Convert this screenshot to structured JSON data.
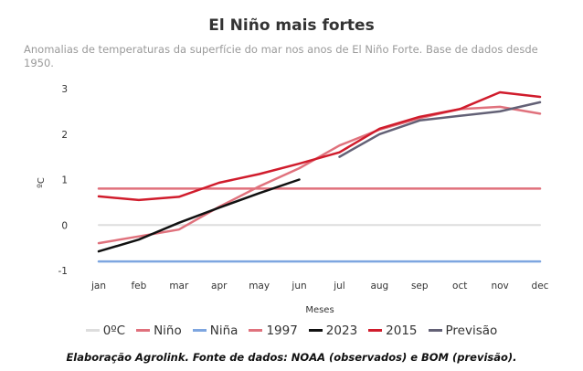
{
  "chart_data": {
    "type": "line",
    "title": "El Niño mais fortes",
    "subtitle": "Anomalias de temperaturas da superfície do mar nos anos de El Niño Forte. Base de dados desde 1950.",
    "xlabel": "Meses",
    "ylabel": "ºC",
    "categories": [
      "jan",
      "feb",
      "mar",
      "apr",
      "may",
      "jun",
      "jul",
      "aug",
      "sep",
      "oct",
      "nov",
      "dec"
    ],
    "yticks": [
      3,
      2,
      1,
      0,
      -1
    ],
    "ylim": [
      -1,
      3
    ],
    "grid": false,
    "legend_position": "bottom",
    "series": [
      {
        "name": "0ºC",
        "color": "#dddddd",
        "values": [
          0,
          0,
          0,
          0,
          0,
          0,
          0,
          0,
          0,
          0,
          0,
          0
        ]
      },
      {
        "name": "Niño",
        "color": "#e0707c",
        "values": [
          0.8,
          0.8,
          0.8,
          0.8,
          0.8,
          0.8,
          0.8,
          0.8,
          0.8,
          0.8,
          0.8,
          0.8
        ]
      },
      {
        "name": "Niña",
        "color": "#7ea6e0",
        "values": [
          -0.8,
          -0.8,
          -0.8,
          -0.8,
          -0.8,
          -0.8,
          -0.8,
          -0.8,
          -0.8,
          -0.8,
          -0.8,
          -0.8
        ]
      },
      {
        "name": "1997",
        "color": "#e0727d",
        "values": [
          -0.4,
          -0.25,
          -0.1,
          0.4,
          0.85,
          1.25,
          1.75,
          2.1,
          2.35,
          2.55,
          2.6,
          2.45
        ]
      },
      {
        "name": "2023",
        "color": "#111111",
        "values": [
          -0.58,
          -0.32,
          0.05,
          0.38,
          0.7,
          1.0,
          null,
          null,
          null,
          null,
          null,
          null
        ]
      },
      {
        "name": "2015",
        "color": "#d01c2c",
        "values": [
          0.63,
          0.55,
          0.62,
          0.93,
          1.12,
          1.35,
          1.6,
          2.12,
          2.38,
          2.55,
          2.92,
          2.82
        ]
      },
      {
        "name": "Previsão",
        "color": "#636176",
        "values": [
          null,
          null,
          null,
          null,
          null,
          null,
          1.5,
          2.0,
          2.3,
          2.4,
          2.5,
          2.7
        ]
      }
    ]
  },
  "caption": "Elaboração Agrolink. Fonte de dados: NOAA (observados) e BOM (previsão)."
}
